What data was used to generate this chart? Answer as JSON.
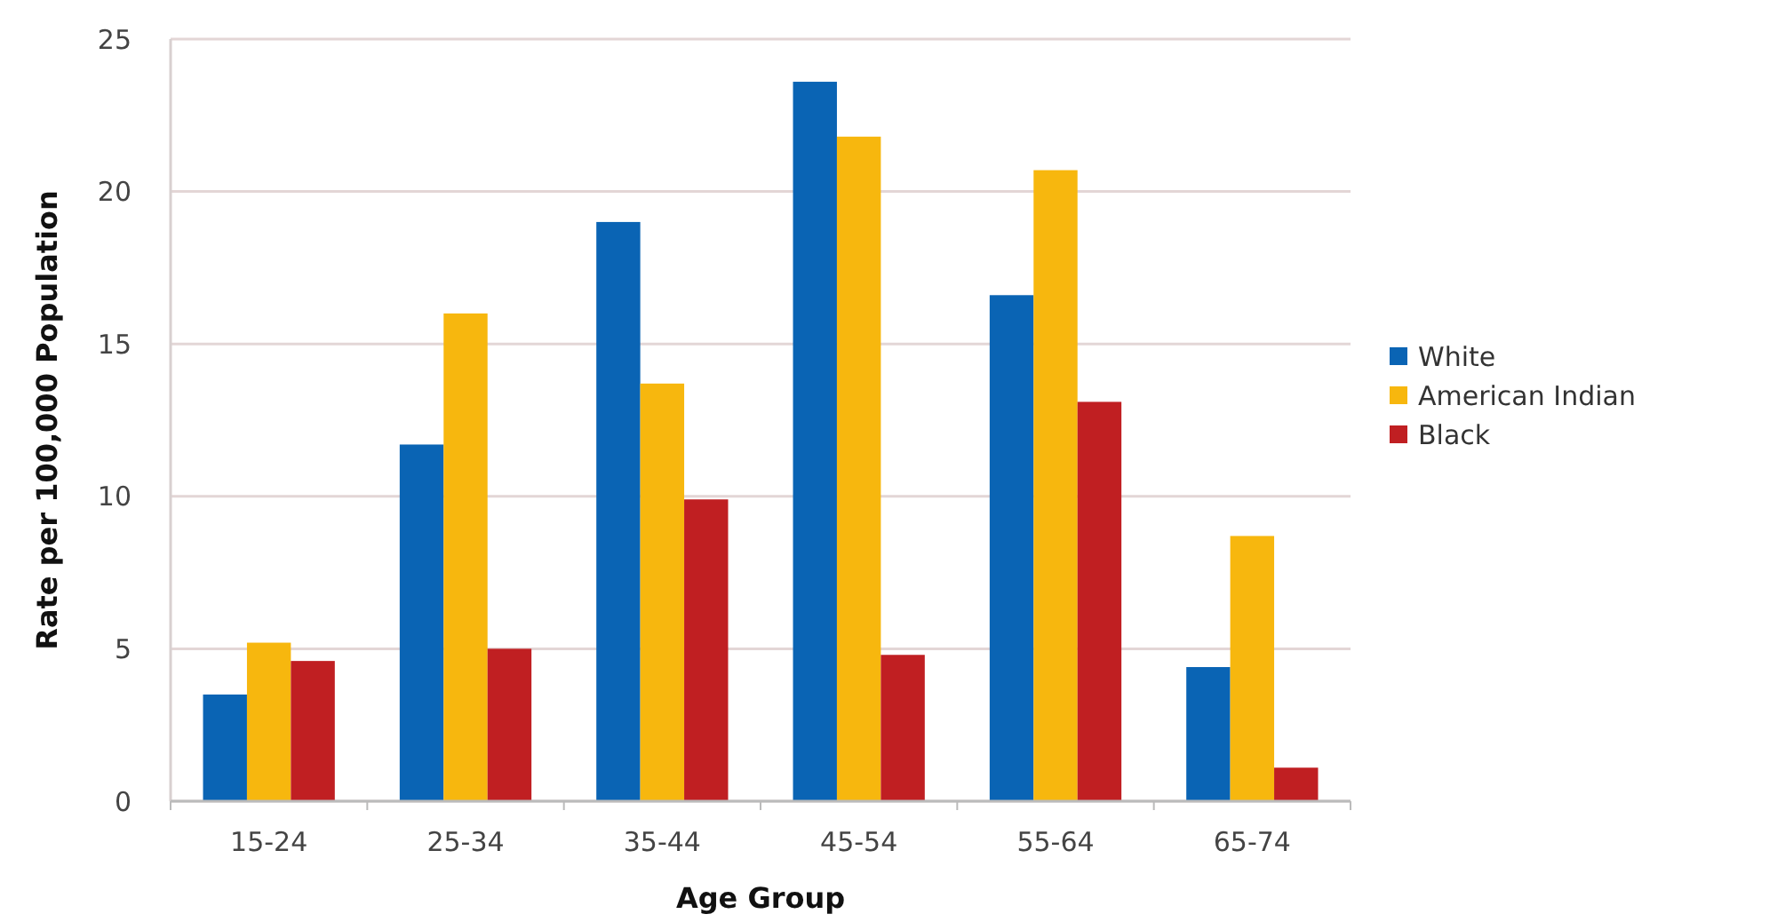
{
  "chart_data": {
    "type": "bar",
    "xlabel": "Age Group",
    "ylabel": "Rate per 100,000 Population",
    "categories": [
      "15-24",
      "25-34",
      "35-44",
      "45-54",
      "55-64",
      "65-74"
    ],
    "series": [
      {
        "name": "White",
        "color": "#0a64b4",
        "values": [
          3.5,
          11.7,
          19.0,
          23.6,
          16.6,
          4.4
        ]
      },
      {
        "name": "American Indian",
        "color": "#f7b70e",
        "values": [
          5.2,
          16.0,
          13.7,
          21.8,
          20.7,
          8.7
        ]
      },
      {
        "name": "Black",
        "color": "#c01f22",
        "values": [
          4.6,
          5.0,
          9.9,
          4.8,
          13.1,
          1.1
        ]
      }
    ],
    "ylim": [
      0,
      25
    ],
    "yticks": [
      0,
      5,
      10,
      15,
      20,
      25
    ],
    "grid": "y",
    "legend": "right"
  }
}
